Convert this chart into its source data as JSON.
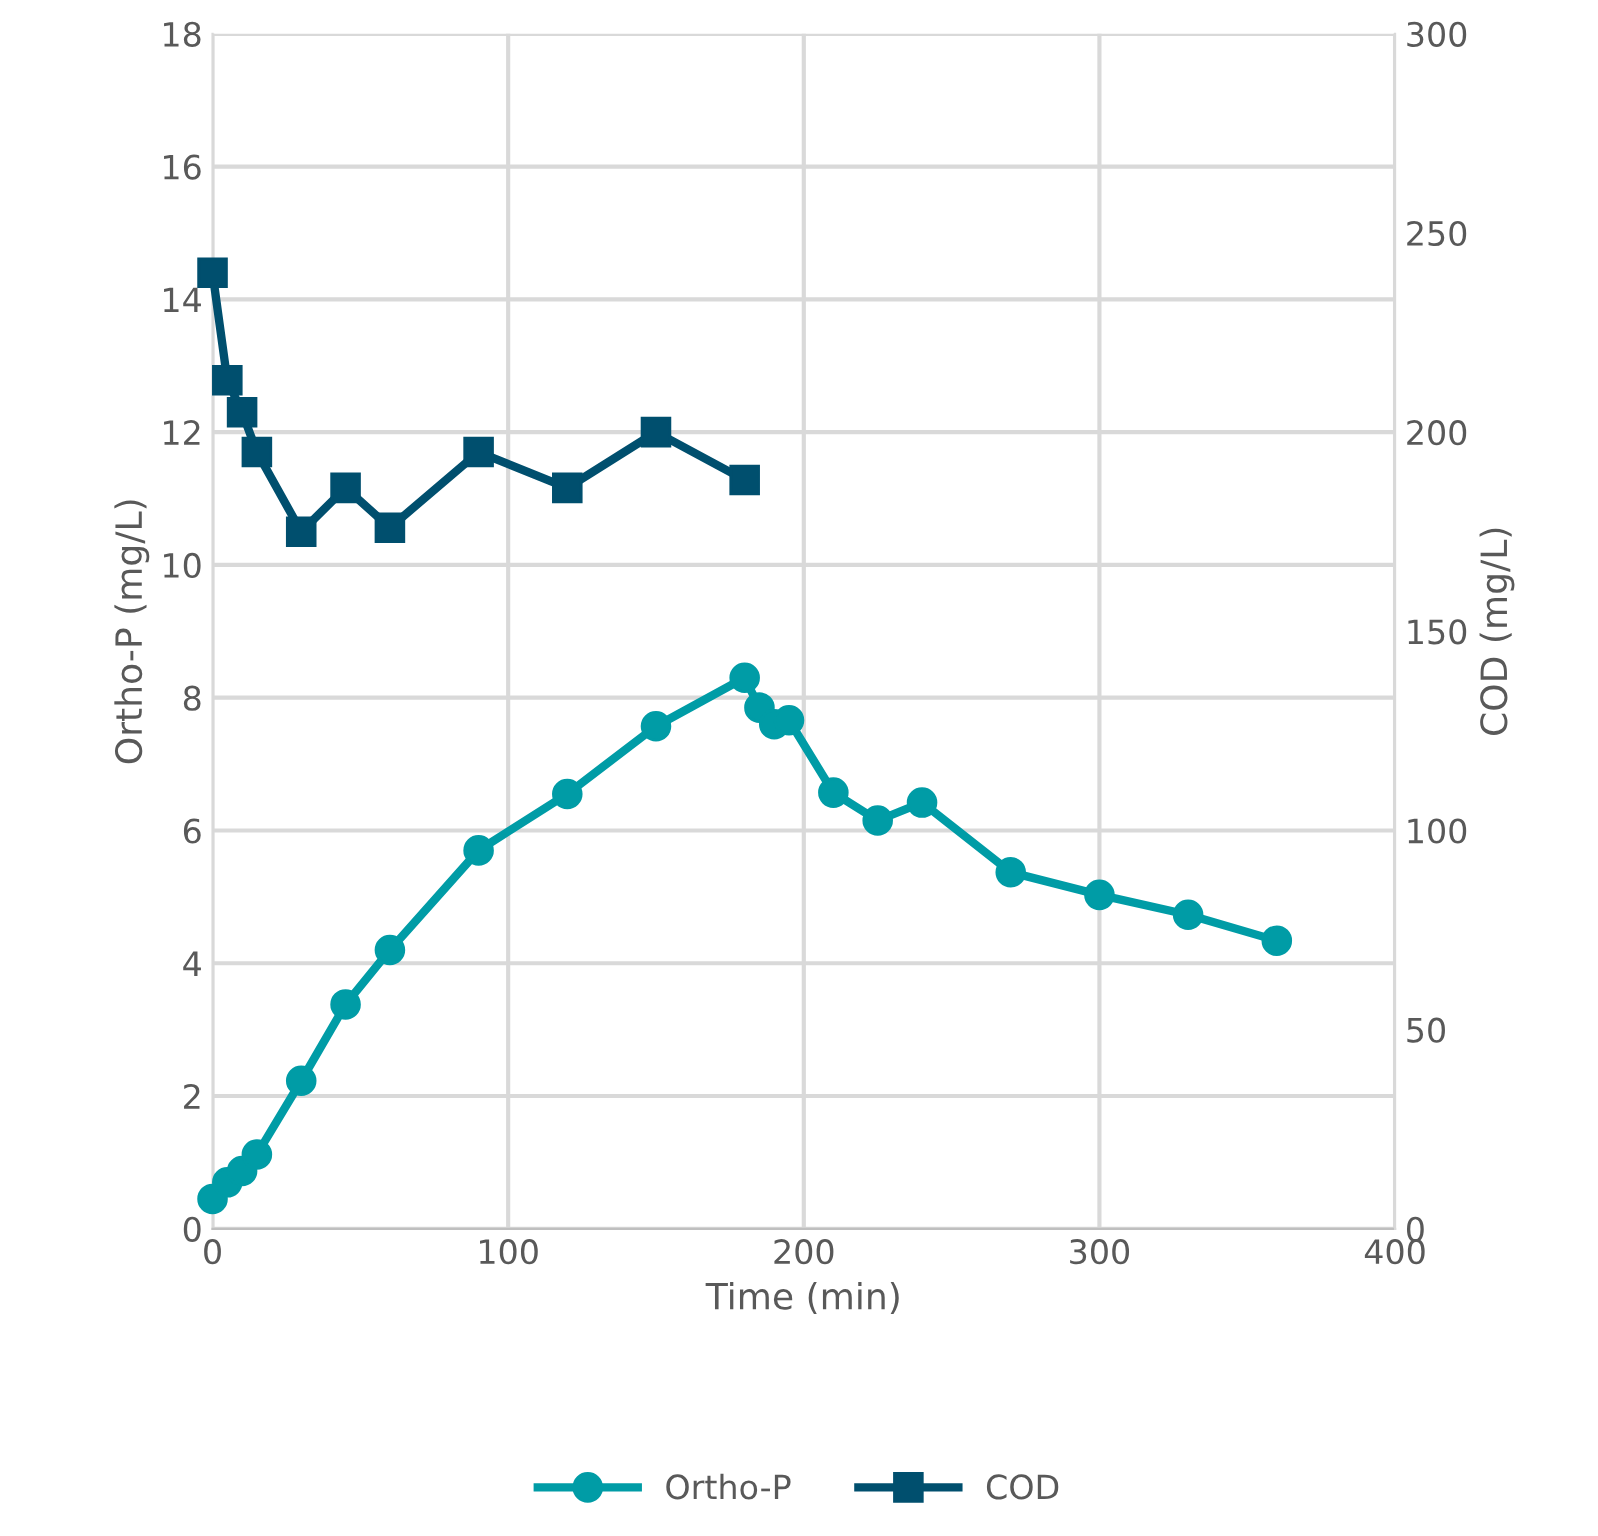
{
  "chart_data": {
    "type": "line",
    "xlabel": "Time (min)",
    "ylabel": "Ortho-P (mg/L)",
    "y2label": "COD (mg/L)",
    "xlim": [
      0,
      400
    ],
    "xticks": [
      0,
      100,
      200,
      300,
      400
    ],
    "ylim": [
      0,
      18
    ],
    "yticks": [
      0,
      2,
      4,
      6,
      8,
      10,
      12,
      14,
      16,
      18
    ],
    "y2lim": [
      0,
      300
    ],
    "y2ticks": [
      0,
      50,
      100,
      150,
      200,
      250,
      300
    ],
    "grid": true,
    "legend": "bottom",
    "series": [
      {
        "name": "Ortho-P",
        "color": "#009ca6",
        "marker": "circle",
        "x": [
          0,
          5,
          10,
          15,
          30,
          45,
          60,
          90,
          120,
          150,
          180,
          185,
          190,
          195,
          210,
          225,
          240,
          270,
          300,
          330,
          360
        ],
        "values": [
          0.45,
          0.7,
          0.87,
          1.12,
          2.23,
          3.38,
          4.2,
          5.7,
          6.55,
          7.57,
          8.3,
          7.85,
          7.6,
          7.66,
          6.57,
          6.15,
          6.42,
          5.37,
          5.03,
          4.73,
          4.34
        ]
      },
      {
        "name": "COD",
        "color": "#004f6e",
        "marker": "square",
        "axis": "y2",
        "x": [
          0,
          5,
          10,
          15,
          30,
          45,
          60,
          90,
          120,
          150,
          180
        ],
        "values": [
          240,
          213,
          205,
          195,
          175,
          186,
          176,
          195,
          186,
          200,
          188
        ]
      }
    ]
  }
}
